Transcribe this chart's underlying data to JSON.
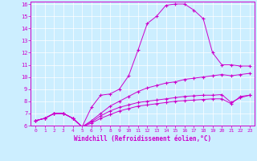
{
  "xlabel": "Windchill (Refroidissement éolien,°C)",
  "bg_color": "#cceeff",
  "line_color": "#cc00cc",
  "grid_color": "#ffffff",
  "xlim": [
    -0.5,
    23.5
  ],
  "ylim": [
    6,
    16.2
  ],
  "yticks": [
    6,
    7,
    8,
    9,
    10,
    11,
    12,
    13,
    14,
    15,
    16
  ],
  "xticks": [
    0,
    1,
    2,
    3,
    4,
    5,
    6,
    7,
    8,
    9,
    10,
    11,
    12,
    13,
    14,
    15,
    16,
    17,
    18,
    19,
    20,
    21,
    22,
    23
  ],
  "series": [
    {
      "x": [
        0,
        1,
        2,
        3,
        4,
        5,
        6,
        7,
        8,
        9,
        10,
        11,
        12,
        13,
        14,
        15,
        16,
        17,
        18,
        19,
        20,
        21,
        22,
        23
      ],
      "y": [
        6.4,
        6.6,
        7.0,
        7.0,
        6.6,
        5.9,
        7.5,
        8.5,
        8.6,
        9.0,
        10.1,
        12.2,
        14.4,
        15.0,
        15.9,
        16.0,
        16.0,
        15.5,
        14.8,
        12.0,
        11.0,
        11.0,
        10.9,
        10.9
      ]
    },
    {
      "x": [
        0,
        1,
        2,
        3,
        4,
        5,
        6,
        7,
        8,
        9,
        10,
        11,
        12,
        13,
        14,
        15,
        16,
        17,
        18,
        19,
        20,
        21,
        22,
        23
      ],
      "y": [
        6.4,
        6.6,
        7.0,
        7.0,
        6.6,
        5.9,
        6.4,
        7.0,
        7.6,
        8.0,
        8.4,
        8.8,
        9.1,
        9.3,
        9.5,
        9.6,
        9.8,
        9.9,
        10.0,
        10.1,
        10.2,
        10.1,
        10.2,
        10.3
      ]
    },
    {
      "x": [
        0,
        1,
        2,
        3,
        4,
        5,
        6,
        7,
        8,
        9,
        10,
        11,
        12,
        13,
        14,
        15,
        16,
        17,
        18,
        19,
        20,
        21,
        22,
        23
      ],
      "y": [
        6.4,
        6.6,
        7.0,
        7.0,
        6.6,
        5.9,
        6.3,
        6.8,
        7.2,
        7.5,
        7.7,
        7.9,
        8.0,
        8.1,
        8.2,
        8.3,
        8.4,
        8.45,
        8.5,
        8.5,
        8.55,
        7.9,
        8.3,
        8.5
      ]
    },
    {
      "x": [
        0,
        1,
        2,
        3,
        4,
        5,
        6,
        7,
        8,
        9,
        10,
        11,
        12,
        13,
        14,
        15,
        16,
        17,
        18,
        19,
        20,
        21,
        22,
        23
      ],
      "y": [
        6.4,
        6.6,
        7.0,
        7.0,
        6.6,
        5.9,
        6.2,
        6.6,
        6.9,
        7.2,
        7.4,
        7.6,
        7.7,
        7.8,
        7.9,
        8.0,
        8.05,
        8.1,
        8.15,
        8.2,
        8.2,
        7.8,
        8.4,
        8.5
      ]
    }
  ]
}
